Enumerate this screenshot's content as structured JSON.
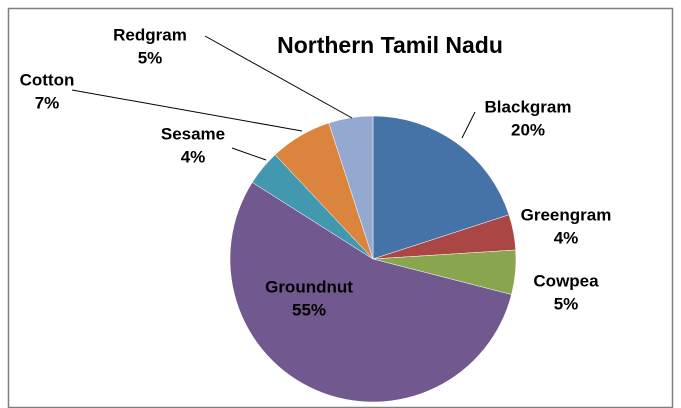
{
  "chart_data": {
    "type": "pie",
    "title": "Northern Tamil Nadu",
    "categories": [
      "Blackgram",
      "Greengram",
      "Cowpea",
      "Groundnut",
      "Sesame",
      "Cotton",
      "Redgram"
    ],
    "values": [
      20,
      4,
      5,
      55,
      4,
      7,
      5
    ],
    "value_labels": [
      "20%",
      "4%",
      "5%",
      "55%",
      "4%",
      "7%",
      "5%"
    ],
    "colors": [
      "#4572a7",
      "#aa4643",
      "#89a54e",
      "#71588f",
      "#4198af",
      "#db843d",
      "#93a9cf"
    ],
    "title_color": "#00b050"
  }
}
